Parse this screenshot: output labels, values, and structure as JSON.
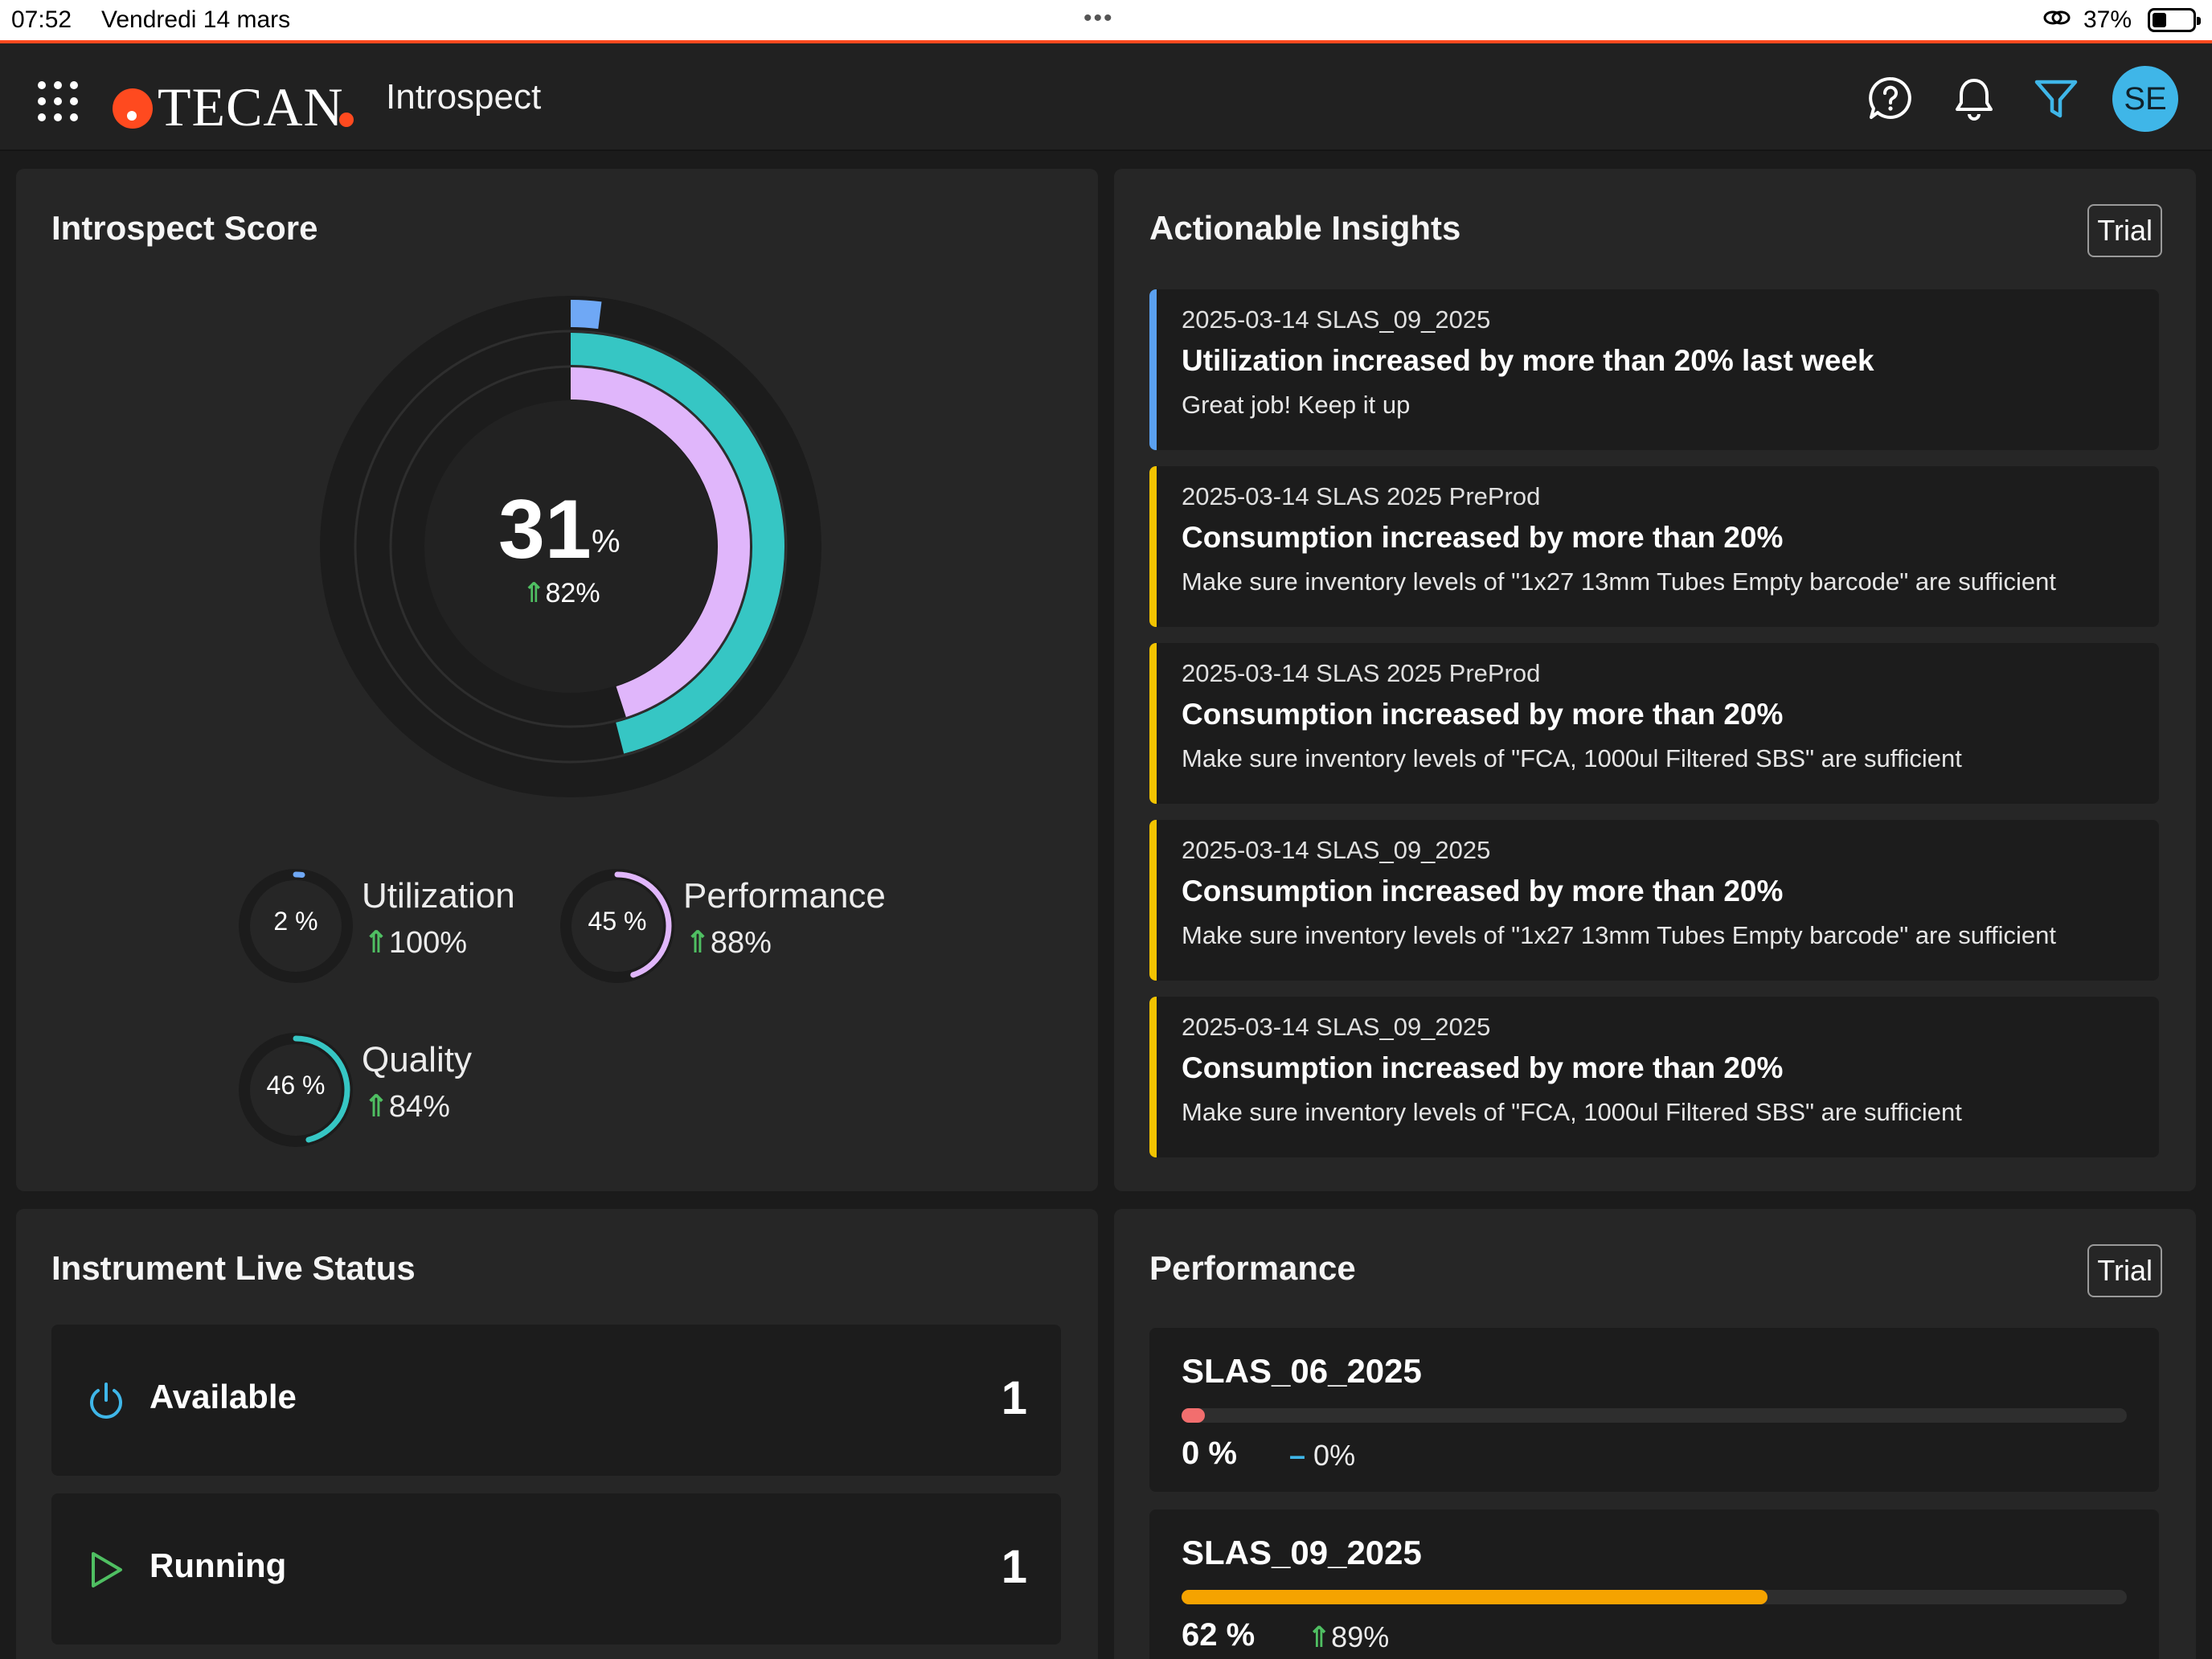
{
  "status_bar": {
    "time": "07:52",
    "date": "Vendredi 14 mars",
    "battery": "37%",
    "battery_level": 0.37
  },
  "header": {
    "brand": "TECAN",
    "app_name": "Introspect",
    "avatar_initials": "SE",
    "accent": "#3fb6e8"
  },
  "score_card": {
    "title": "Introspect Score",
    "score": "31",
    "unit": "%",
    "trend": "82%",
    "rings": {
      "utilization": 0.02,
      "performance": 0.45,
      "quality": 0.46
    },
    "colors": {
      "utilization": "#6fa8f5",
      "performance": "#e0b6fb",
      "quality": "#36c6c4"
    },
    "metrics": [
      {
        "name": "Utilization",
        "value": "2 %",
        "trend": "100%"
      },
      {
        "name": "Performance",
        "value": "45 %",
        "trend": "88%"
      },
      {
        "name": "Quality",
        "value": "46 %",
        "trend": "84%"
      }
    ]
  },
  "insights_card": {
    "title": "Actionable Insights",
    "badge": "Trial",
    "items": [
      {
        "meta": "2025-03-14 SLAS_09_2025",
        "title": "Utilization increased by more than 20% last week",
        "desc": "Great job! Keep it up",
        "color": "#5aa0f0"
      },
      {
        "meta": "2025-03-14 SLAS 2025 PreProd",
        "title": "Consumption increased by more than 20%",
        "desc": "Make sure inventory levels of \"1x27 13mm Tubes Empty barcode\" are sufficient",
        "color": "#f2c300"
      },
      {
        "meta": "2025-03-14 SLAS 2025 PreProd",
        "title": "Consumption increased by more than 20%",
        "desc": "Make sure inventory levels of \"FCA, 1000ul Filtered SBS\" are sufficient",
        "color": "#f2c300"
      },
      {
        "meta": "2025-03-14 SLAS_09_2025",
        "title": "Consumption increased by more than 20%",
        "desc": "Make sure inventory levels of \"1x27 13mm Tubes Empty barcode\" are sufficient",
        "color": "#f2c300"
      },
      {
        "meta": "2025-03-14 SLAS_09_2025",
        "title": "Consumption increased by more than 20%",
        "desc": "Make sure inventory levels of \"FCA, 1000ul Filtered SBS\" are sufficient",
        "color": "#f2c300"
      }
    ]
  },
  "live_status_card": {
    "title": "Instrument Live Status",
    "rows": [
      {
        "label": "Available",
        "count": "1",
        "icon_color": "#3fb6e8"
      },
      {
        "label": "Running",
        "count": "1",
        "icon_color": "#4fbf62"
      }
    ]
  },
  "performance_card": {
    "title": "Performance",
    "badge": "Trial",
    "rows": [
      {
        "name": "SLAS_06_2025",
        "value": "0 %",
        "trend": "0%",
        "progress": 0.0,
        "color": "#f26e6e"
      },
      {
        "name": "SLAS_09_2025",
        "value": "62 %",
        "trend": "89%",
        "progress": 0.62,
        "color": "#f5a300"
      }
    ]
  }
}
